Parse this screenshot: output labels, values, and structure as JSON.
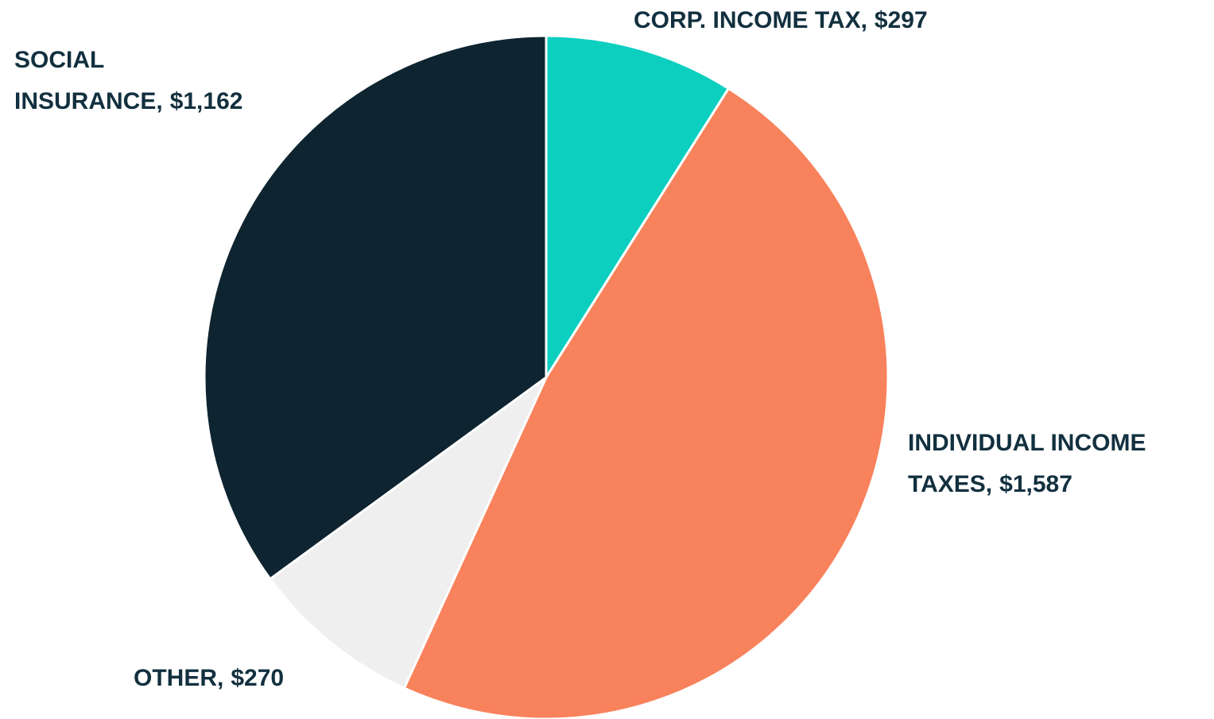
{
  "chart_data": {
    "type": "pie",
    "categories": [
      "CORP. INCOME TAX,",
      "INDIVIDUAL INCOME TAXES,",
      "OTHER,",
      "SOCIAL INSURANCE,"
    ],
    "values": [
      297,
      1587,
      270,
      1162
    ],
    "value_labels": [
      "$297",
      "$1,587",
      "$270",
      "$1,162"
    ],
    "colors": [
      "#0ccfc0",
      "#f8825c",
      "#efefef",
      "#0e2430"
    ]
  }
}
